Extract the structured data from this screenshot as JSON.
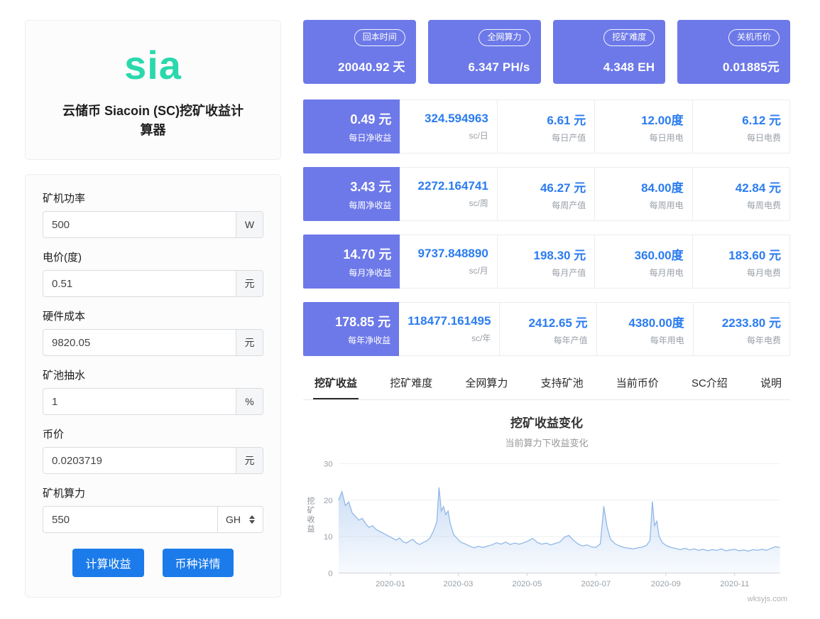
{
  "theme": {
    "accent_purple": "#6d79e8",
    "accent_blue": "#2b7cf0",
    "button_blue": "#1b7bea",
    "logo_teal": "#2bd8ad"
  },
  "app": {
    "logo_text": "sia",
    "title": "云储币 Siacoin (SC)挖矿收益计算器"
  },
  "form": {
    "fields": [
      {
        "label": "矿机功率",
        "value": "500",
        "unit": "W"
      },
      {
        "label": "电价(度)",
        "value": "0.51",
        "unit": "元"
      },
      {
        "label": "硬件成本",
        "value": "9820.05",
        "unit": "元"
      },
      {
        "label": "矿池抽水",
        "value": "1",
        "unit": "%"
      },
      {
        "label": "币价",
        "value": "0.0203719",
        "unit": "元"
      }
    ],
    "hashrate": {
      "label": "矿机算力",
      "value": "550",
      "unit": "GH"
    },
    "buttons": {
      "calculate": "计算收益",
      "details": "币种详情"
    }
  },
  "stat_cards": [
    {
      "badge": "回本时间",
      "value": "20040.92 天"
    },
    {
      "badge": "全网算力",
      "value": "6.347 PH/s"
    },
    {
      "badge": "挖矿难度",
      "value": "4.348 EH"
    },
    {
      "badge": "关机币价",
      "value": "0.01885元"
    }
  ],
  "earnings_rows": [
    {
      "net": {
        "value": "0.49 元",
        "label": "每日净收益"
      },
      "cells": [
        {
          "value": "324.594963",
          "label": "sc/日"
        },
        {
          "value": "6.61 元",
          "label": "每日产值"
        },
        {
          "value": "12.00度",
          "label": "每日用电"
        },
        {
          "value": "6.12 元",
          "label": "每日电费"
        }
      ]
    },
    {
      "net": {
        "value": "3.43 元",
        "label": "每周净收益"
      },
      "cells": [
        {
          "value": "2272.164741",
          "label": "sc/周"
        },
        {
          "value": "46.27 元",
          "label": "每周产值"
        },
        {
          "value": "84.00度",
          "label": "每周用电"
        },
        {
          "value": "42.84 元",
          "label": "每周电费"
        }
      ]
    },
    {
      "net": {
        "value": "14.70 元",
        "label": "每月净收益"
      },
      "cells": [
        {
          "value": "9737.848890",
          "label": "sc/月"
        },
        {
          "value": "198.30 元",
          "label": "每月产值"
        },
        {
          "value": "360.00度",
          "label": "每月用电"
        },
        {
          "value": "183.60 元",
          "label": "每月电费"
        }
      ]
    },
    {
      "net": {
        "value": "178.85 元",
        "label": "每年净收益"
      },
      "cells": [
        {
          "value": "118477.161495",
          "label": "sc/年"
        },
        {
          "value": "2412.65 元",
          "label": "每年产值"
        },
        {
          "value": "4380.00度",
          "label": "每年用电"
        },
        {
          "value": "2233.80 元",
          "label": "每年电费"
        }
      ]
    }
  ],
  "tabs": [
    {
      "label": "挖矿收益",
      "active": true
    },
    {
      "label": "挖矿难度"
    },
    {
      "label": "全网算力"
    },
    {
      "label": "支持矿池"
    },
    {
      "label": "当前币价"
    },
    {
      "label": "SC介绍"
    },
    {
      "label": "说明"
    }
  ],
  "chart_data": {
    "type": "area",
    "title": "挖矿收益变化",
    "subtitle": "当前算力下收益变化",
    "ylabel": "挖矿收益",
    "xlabel": "",
    "ylim": [
      0,
      30
    ],
    "yticks": [
      0,
      10,
      20,
      30
    ],
    "xticks": [
      "2020-01",
      "2020-03",
      "2020-05",
      "2020-07",
      "2020-09",
      "2020-11"
    ],
    "watermark": "wksyjs.com",
    "line_color": "#8fb6e6",
    "area_color": "#a9c8ef",
    "dates": [
      "2019-11-16",
      "2019-11-19",
      "2019-11-22",
      "2019-11-25",
      "2019-11-28",
      "2019-12-01",
      "2019-12-04",
      "2019-12-07",
      "2019-12-10",
      "2019-12-13",
      "2019-12-16",
      "2019-12-19",
      "2019-12-22",
      "2019-12-25",
      "2019-12-28",
      "2019-12-31",
      "2020-01-03",
      "2020-01-06",
      "2020-01-09",
      "2020-01-12",
      "2020-01-15",
      "2020-01-18",
      "2020-01-21",
      "2020-01-24",
      "2020-01-27",
      "2020-01-30",
      "2020-02-02",
      "2020-02-05",
      "2020-02-08",
      "2020-02-11",
      "2020-02-13",
      "2020-02-15",
      "2020-02-17",
      "2020-02-19",
      "2020-02-21",
      "2020-02-23",
      "2020-02-26",
      "2020-02-29",
      "2020-03-03",
      "2020-03-07",
      "2020-03-11",
      "2020-03-15",
      "2020-03-19",
      "2020-03-23",
      "2020-03-27",
      "2020-03-31",
      "2020-04-04",
      "2020-04-08",
      "2020-04-12",
      "2020-04-16",
      "2020-04-20",
      "2020-04-24",
      "2020-04-28",
      "2020-05-02",
      "2020-05-06",
      "2020-05-10",
      "2020-05-14",
      "2020-05-18",
      "2020-05-22",
      "2020-05-26",
      "2020-05-30",
      "2020-06-03",
      "2020-06-07",
      "2020-06-11",
      "2020-06-15",
      "2020-06-19",
      "2020-06-23",
      "2020-06-27",
      "2020-07-01",
      "2020-07-05",
      "2020-07-08",
      "2020-07-11",
      "2020-07-14",
      "2020-07-18",
      "2020-07-22",
      "2020-07-26",
      "2020-07-30",
      "2020-08-03",
      "2020-08-07",
      "2020-08-11",
      "2020-08-15",
      "2020-08-18",
      "2020-08-20",
      "2020-08-22",
      "2020-08-24",
      "2020-08-26",
      "2020-08-29",
      "2020-09-02",
      "2020-09-06",
      "2020-09-10",
      "2020-09-14",
      "2020-09-18",
      "2020-09-22",
      "2020-09-26",
      "2020-09-30",
      "2020-10-04",
      "2020-10-08",
      "2020-10-12",
      "2020-10-16",
      "2020-10-20",
      "2020-10-24",
      "2020-10-28",
      "2020-11-01",
      "2020-11-05",
      "2020-11-09",
      "2020-11-13",
      "2020-11-17",
      "2020-11-21",
      "2020-11-25",
      "2020-11-29",
      "2020-12-03",
      "2020-12-07",
      "2020-12-11"
    ],
    "values": [
      20.0,
      22.3,
      18.5,
      19.5,
      16.5,
      15.5,
      14.5,
      15.0,
      13.5,
      12.5,
      13.0,
      12.0,
      11.5,
      11.0,
      10.5,
      10.0,
      9.5,
      9.0,
      9.6,
      8.6,
      8.2,
      8.8,
      9.2,
      8.2,
      7.8,
      8.4,
      8.8,
      9.6,
      11.5,
      14.0,
      23.5,
      17.0,
      18.2,
      16.0,
      17.0,
      13.5,
      10.5,
      9.5,
      8.5,
      8.0,
      7.4,
      6.9,
      7.3,
      7.0,
      7.4,
      7.7,
      8.3,
      7.9,
      8.5,
      7.8,
      8.2,
      7.9,
      8.3,
      8.8,
      9.5,
      8.4,
      7.9,
      8.2,
      7.7,
      8.1,
      8.5,
      9.8,
      10.3,
      9.0,
      8.0,
      7.4,
      7.7,
      7.2,
      7.0,
      8.0,
      18.3,
      12.5,
      9.2,
      8.0,
      7.4,
      7.0,
      6.8,
      6.6,
      6.9,
      7.1,
      7.6,
      9.0,
      19.6,
      13.0,
      14.2,
      10.0,
      8.3,
      7.4,
      7.0,
      6.7,
      6.4,
      6.8,
      6.3,
      6.6,
      6.2,
      6.5,
      6.1,
      6.4,
      6.2,
      6.6,
      6.1,
      6.3,
      6.5,
      6.1,
      6.3,
      6.0,
      6.4,
      6.2,
      6.5,
      6.2,
      6.7,
      7.2,
      7.0
    ]
  }
}
